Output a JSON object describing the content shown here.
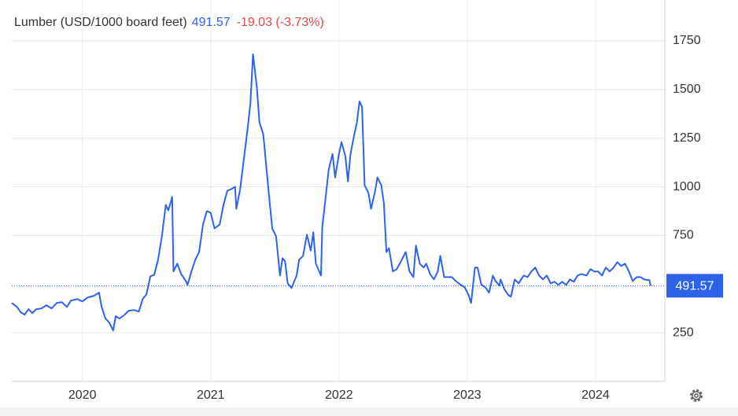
{
  "chart_data": {
    "type": "line",
    "title": "Lumber (USD/1000 board feet)",
    "change": "-19.03 (-3.73%)",
    "color": "#2e62e8",
    "grid": true,
    "x": [
      2019.45,
      2019.49,
      2019.52,
      2019.55,
      2019.58,
      2019.61,
      2019.64,
      2019.68,
      2019.72,
      2019.76,
      2019.8,
      2019.84,
      2019.88,
      2019.91,
      2019.96,
      2020.0,
      2020.04,
      2020.09,
      2020.13,
      2020.15,
      2020.18,
      2020.21,
      2020.24,
      2020.26,
      2020.29,
      2020.33,
      2020.36,
      2020.4,
      2020.44,
      2020.47,
      2020.5,
      2020.53,
      2020.56,
      2020.59,
      2020.62,
      2020.65,
      2020.67,
      2020.7,
      2020.71,
      2020.74,
      2020.77,
      2020.81,
      2020.82,
      2020.85,
      2020.88,
      2020.91,
      2020.94,
      2020.97,
      2021.0,
      2021.03,
      2021.07,
      2021.1,
      2021.13,
      2021.16,
      2021.19,
      2021.2,
      2021.23,
      2021.26,
      2021.29,
      2021.31,
      2021.33,
      2021.36,
      2021.38,
      2021.41,
      2021.45,
      2021.48,
      2021.51,
      2021.54,
      2021.56,
      2021.58,
      2021.6,
      2021.63,
      2021.65,
      2021.67,
      2021.69,
      2021.72,
      2021.75,
      2021.78,
      2021.8,
      2021.82,
      2021.86,
      2021.87,
      2021.9,
      2021.92,
      2021.95,
      2021.97,
      2022.0,
      2022.02,
      2022.05,
      2022.07,
      2022.09,
      2022.12,
      2022.14,
      2022.16,
      2022.18,
      2022.2,
      2022.23,
      2022.25,
      2022.28,
      2022.3,
      2022.33,
      2022.35,
      2022.37,
      2022.39,
      2022.42,
      2022.45,
      2022.49,
      2022.52,
      2022.55,
      2022.58,
      2022.6,
      2022.63,
      2022.66,
      2022.68,
      2022.71,
      2022.74,
      2022.77,
      2022.79,
      2022.82,
      2022.85,
      2022.88,
      2022.91,
      2022.95,
      2022.98,
      2023.01,
      2023.03,
      2023.06,
      2023.08,
      2023.11,
      2023.14,
      2023.17,
      2023.2,
      2023.22,
      2023.25,
      2023.26,
      2023.29,
      2023.32,
      2023.34,
      2023.37,
      2023.4,
      2023.44,
      2023.47,
      2023.5,
      2023.53,
      2023.56,
      2023.59,
      2023.62,
      2023.65,
      2023.68,
      2023.71,
      2023.74,
      2023.77,
      2023.8,
      2023.83,
      2023.86,
      2023.89,
      2023.93,
      2023.96,
      2023.99,
      2024.02,
      2024.05,
      2024.08,
      2024.11,
      2024.14,
      2024.17,
      2024.2,
      2024.23,
      2024.26,
      2024.29,
      2024.32,
      2024.35,
      2024.38,
      2024.42,
      2024.43
    ],
    "values": [
      403,
      383,
      355,
      343,
      371,
      351,
      371,
      375,
      391,
      375,
      403,
      407,
      383,
      415,
      423,
      411,
      431,
      440,
      456,
      383,
      323,
      302,
      262,
      335,
      323,
      343,
      363,
      367,
      359,
      423,
      448,
      540,
      548,
      625,
      746,
      907,
      879,
      948,
      565,
      605,
      552,
      512,
      496,
      565,
      625,
      665,
      806,
      875,
      867,
      786,
      806,
      907,
      980,
      988,
      1000,
      887,
      988,
      1149,
      1310,
      1431,
      1681,
      1512,
      1331,
      1270,
      988,
      786,
      746,
      544,
      633,
      617,
      504,
      480,
      512,
      544,
      625,
      645,
      754,
      673,
      766,
      605,
      544,
      794,
      968,
      1089,
      1169,
      1048,
      1169,
      1230,
      1157,
      1028,
      1169,
      1270,
      1331,
      1439,
      1411,
      1008,
      968,
      887,
      972,
      1048,
      1008,
      915,
      665,
      685,
      565,
      577,
      625,
      665,
      565,
      536,
      698,
      605,
      585,
      605,
      552,
      524,
      565,
      645,
      536,
      536,
      536,
      516,
      496,
      484,
      444,
      403,
      585,
      585,
      496,
      484,
      456,
      544,
      516,
      492,
      524,
      472,
      444,
      435,
      524,
      504,
      544,
      536,
      565,
      585,
      544,
      524,
      544,
      504,
      512,
      496,
      512,
      496,
      524,
      512,
      544,
      552,
      544,
      577,
      565,
      565,
      544,
      585,
      565,
      585,
      613,
      593,
      605,
      565,
      516,
      536,
      536,
      524,
      520,
      491.57
    ],
    "xlim": [
      2019.45,
      2024.54
    ],
    "ylim": [
      0,
      1960
    ],
    "xticks": [
      2020,
      2021,
      2022,
      2023,
      2024
    ],
    "yticks": [
      250,
      750,
      1000,
      1250,
      1500,
      1750
    ]
  }
}
